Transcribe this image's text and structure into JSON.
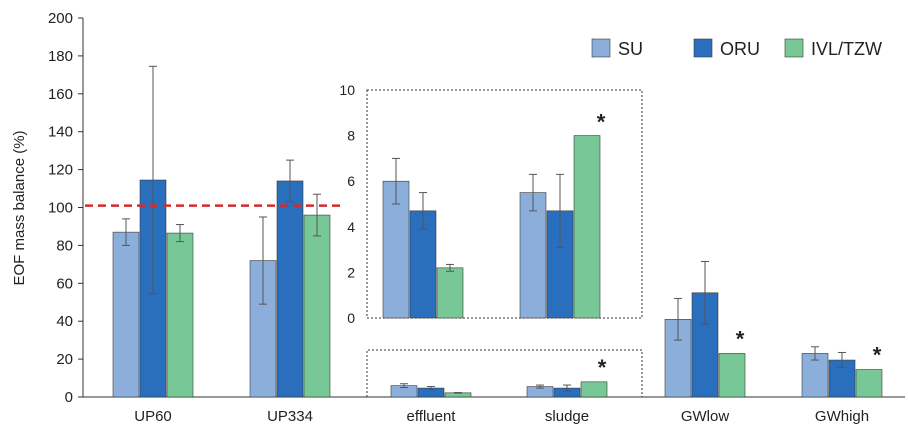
{
  "chart_data": {
    "type": "bar",
    "ylabel": "EOF mass balance (%)",
    "ylim": [
      0,
      200
    ],
    "yticks": [
      0,
      20,
      40,
      60,
      80,
      100,
      120,
      140,
      160,
      180,
      200
    ],
    "categories": [
      "UP60",
      "UP334",
      "effluent",
      "sludge",
      "GWlow",
      "GWhigh"
    ],
    "series": [
      {
        "name": "SU",
        "color": "#8caedb",
        "values": [
          87,
          72,
          6,
          5.5,
          41,
          23
        ],
        "errors": [
          7,
          23,
          1,
          0.8,
          11,
          3.5
        ]
      },
      {
        "name": "ORU",
        "color": "#2a6fbd",
        "values": [
          114.5,
          114,
          4.7,
          4.7,
          55,
          19.5
        ],
        "errors": [
          60,
          11,
          0.8,
          1.6,
          16.5,
          4
        ]
      },
      {
        "name": "IVL/TZW",
        "color": "#78c796",
        "values": [
          86.5,
          96,
          2.2,
          8,
          23,
          14.5
        ],
        "errors": [
          4.5,
          11,
          0.15,
          0,
          0,
          0
        ]
      }
    ],
    "reference_line": {
      "value": 101,
      "color": "#d62b2b",
      "style": "dashed"
    },
    "significance_markers": [
      {
        "category": "sludge",
        "series": "IVL/TZW",
        "label": "*"
      },
      {
        "category": "GWlow",
        "series": "IVL/TZW",
        "label": "*"
      },
      {
        "category": "GWhigh",
        "series": "IVL/TZW",
        "label": "*"
      }
    ],
    "inset": {
      "categories": [
        "effluent",
        "sludge"
      ],
      "ylim": [
        0,
        10
      ],
      "yticks": [
        0,
        2,
        4,
        6,
        8,
        10
      ],
      "star_label": "*"
    },
    "legend": {
      "placement": "top-right"
    },
    "grid": false
  }
}
